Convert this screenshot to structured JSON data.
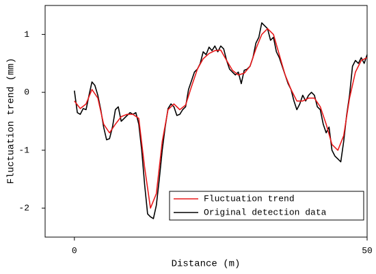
{
  "chart_data": {
    "type": "line",
    "xlabel": "Distance (m)",
    "ylabel": "Fluctuation trend (mm)",
    "xlim": [
      -5,
      50
    ],
    "xticks": [
      0,
      50
    ],
    "ylim": [
      -2.5,
      1.5
    ],
    "yticks": [
      -2,
      -1,
      0,
      1
    ],
    "legend": "lower right",
    "series": [
      {
        "name": "Fluctuation trend",
        "color": "#e8191b",
        "x": [
          0,
          1,
          2,
          3,
          4,
          5,
          6,
          7,
          8,
          9,
          10,
          11,
          12,
          13,
          14,
          15,
          16,
          17,
          18,
          19,
          20,
          21,
          22,
          23,
          24,
          25,
          26,
          27,
          28,
          29,
          30,
          31,
          32,
          33,
          34,
          35,
          36,
          37,
          38,
          39,
          40,
          41,
          42,
          43,
          44,
          45,
          46,
          47,
          48,
          49,
          50
        ],
        "values": [
          -0.15,
          -0.28,
          -0.2,
          0.05,
          -0.1,
          -0.55,
          -0.7,
          -0.55,
          -0.42,
          -0.38,
          -0.38,
          -0.45,
          -1.3,
          -2.0,
          -1.75,
          -0.85,
          -0.3,
          -0.2,
          -0.3,
          -0.22,
          0.1,
          0.4,
          0.58,
          0.67,
          0.72,
          0.73,
          0.55,
          0.38,
          0.3,
          0.33,
          0.45,
          0.75,
          1.0,
          1.1,
          1.0,
          0.65,
          0.3,
          0.05,
          -0.15,
          -0.15,
          -0.1,
          -0.1,
          -0.25,
          -0.55,
          -0.9,
          -1.0,
          -0.75,
          -0.1,
          0.35,
          0.55,
          0.6
        ]
      },
      {
        "name": "Original detection data",
        "color": "#000000",
        "x": [
          0,
          0.5,
          1,
          1.5,
          2,
          2.5,
          3,
          3.5,
          4,
          4.5,
          5,
          5.5,
          6,
          6.5,
          7,
          7.5,
          8,
          8.5,
          9,
          9.5,
          10,
          10.5,
          11,
          11.5,
          12,
          12.5,
          13,
          13.5,
          14,
          14.5,
          15,
          15.5,
          16,
          16.5,
          17,
          17.5,
          18,
          18.5,
          19,
          19.5,
          20,
          20.5,
          21,
          21.5,
          22,
          22.5,
          23,
          23.5,
          24,
          24.5,
          25,
          25.5,
          26,
          26.5,
          27,
          27.5,
          28,
          28.5,
          29,
          29.5,
          30,
          30.5,
          31,
          31.5,
          32,
          32.5,
          33,
          33.5,
          34,
          34.5,
          35,
          35.5,
          36,
          36.5,
          37,
          37.5,
          38,
          38.5,
          39,
          39.5,
          40,
          40.5,
          41,
          41.5,
          42,
          42.5,
          43,
          43.5,
          44,
          44.5,
          45,
          45.5,
          46,
          46.5,
          47,
          47.5,
          48,
          48.5,
          49,
          49.5,
          50
        ],
        "values": [
          0.03,
          -0.35,
          -0.38,
          -0.28,
          -0.3,
          -0.05,
          0.18,
          0.12,
          -0.05,
          -0.3,
          -0.6,
          -0.82,
          -0.8,
          -0.6,
          -0.3,
          -0.25,
          -0.5,
          -0.45,
          -0.4,
          -0.35,
          -0.38,
          -0.35,
          -0.55,
          -1.0,
          -1.6,
          -2.1,
          -2.15,
          -2.18,
          -1.95,
          -1.5,
          -1.0,
          -0.6,
          -0.28,
          -0.2,
          -0.25,
          -0.4,
          -0.38,
          -0.3,
          -0.25,
          0.05,
          0.2,
          0.35,
          0.4,
          0.5,
          0.7,
          0.65,
          0.78,
          0.72,
          0.8,
          0.7,
          0.8,
          0.75,
          0.55,
          0.4,
          0.35,
          0.3,
          0.35,
          0.15,
          0.38,
          0.4,
          0.45,
          0.6,
          0.85,
          0.95,
          1.2,
          1.15,
          1.1,
          0.9,
          0.95,
          0.7,
          0.6,
          0.45,
          0.3,
          0.15,
          0.05,
          -0.15,
          -0.3,
          -0.2,
          -0.05,
          -0.15,
          -0.05,
          0.0,
          -0.05,
          -0.25,
          -0.3,
          -0.55,
          -0.7,
          -0.6,
          -1.0,
          -1.1,
          -1.15,
          -1.2,
          -0.85,
          -0.4,
          -0.05,
          0.45,
          0.55,
          0.5,
          0.6,
          0.5,
          0.65
        ]
      }
    ]
  }
}
